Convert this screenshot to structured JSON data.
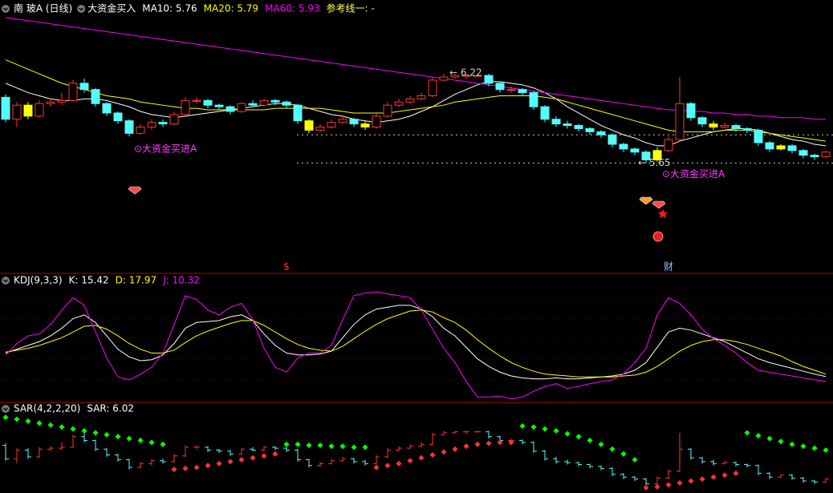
{
  "chart_data": [
    {
      "type": "candlestick",
      "title": "南 玻A (日线)",
      "subtitle": "大资金买入",
      "note": "参考线一: -",
      "note_color": "#ffff54",
      "open": [
        6.07,
        5.93,
        6.02,
        5.95,
        6.03,
        6.04,
        6.05,
        6.16,
        6.12,
        6.03,
        5.97,
        5.92,
        5.84,
        5.88,
        5.91,
        5.9,
        5.96,
        6.05,
        6.05,
        6.02,
        6.01,
        5.98,
        6.03,
        6.02,
        6.05,
        6.04,
        6.02,
        5.92,
        5.86,
        5.88,
        5.91,
        5.93,
        5.9,
        5.88,
        5.95,
        6.02,
        6.04,
        6.06,
        6.08,
        6.18,
        6.2,
        6.21,
        6.21,
        6.21,
        6.16,
        6.12,
        6.12,
        6.1,
        6.01,
        5.93,
        5.9,
        5.89,
        5.87,
        5.85,
        5.83,
        5.77,
        5.74,
        5.72,
        5.67,
        5.73,
        5.8,
        6.03,
        5.94,
        5.9,
        5.88,
        5.89,
        5.87,
        5.86,
        5.78,
        5.74,
        5.76,
        5.73,
        5.7,
        5.69
      ],
      "high": [
        6.09,
        6.04,
        6.04,
        6.05,
        6.06,
        6.1,
        6.18,
        6.19,
        6.13,
        6.04,
        5.98,
        5.93,
        5.9,
        5.93,
        5.93,
        5.98,
        6.07,
        6.07,
        6.06,
        6.03,
        6.02,
        6.04,
        6.05,
        6.06,
        6.06,
        6.05,
        6.03,
        5.93,
        5.9,
        5.93,
        5.95,
        5.94,
        5.92,
        5.97,
        6.04,
        6.06,
        6.08,
        6.1,
        6.2,
        6.22,
        6.22,
        6.22,
        6.22,
        6.22,
        6.17,
        6.14,
        6.13,
        6.11,
        6.02,
        5.95,
        5.92,
        5.9,
        5.88,
        5.86,
        5.84,
        5.78,
        5.75,
        5.73,
        5.75,
        5.82,
        6.2,
        6.04,
        5.95,
        5.92,
        5.91,
        5.9,
        5.88,
        5.87,
        5.79,
        5.77,
        5.77,
        5.74,
        5.71,
        5.73
      ],
      "low": [
        5.91,
        5.88,
        5.93,
        5.94,
        6.01,
        6.02,
        6.04,
        6.1,
        6.01,
        5.95,
        5.9,
        5.82,
        5.83,
        5.86,
        5.88,
        5.89,
        5.95,
        6.03,
        6.0,
        5.99,
        5.96,
        5.97,
        6.01,
        6.01,
        6.02,
        6.0,
        5.9,
        5.84,
        5.85,
        5.87,
        5.9,
        5.88,
        5.86,
        5.87,
        5.94,
        6.01,
        6.03,
        6.05,
        6.07,
        6.17,
        6.19,
        6.19,
        6.2,
        6.14,
        6.1,
        6.1,
        6.08,
        5.99,
        5.91,
        5.88,
        5.87,
        5.85,
        5.83,
        5.81,
        5.75,
        5.72,
        5.7,
        5.65,
        5.66,
        5.72,
        5.79,
        5.92,
        5.88,
        5.86,
        5.87,
        5.85,
        5.84,
        5.76,
        5.72,
        5.73,
        5.71,
        5.68,
        5.67,
        5.68
      ],
      "close": [
        5.93,
        6.02,
        5.95,
        6.03,
        6.04,
        6.05,
        6.16,
        6.12,
        6.03,
        5.97,
        5.92,
        5.84,
        5.88,
        5.91,
        5.9,
        5.96,
        6.05,
        6.05,
        6.02,
        6.01,
        5.98,
        6.03,
        6.02,
        6.05,
        6.04,
        6.02,
        5.92,
        5.86,
        5.88,
        5.91,
        5.93,
        5.9,
        5.88,
        5.95,
        6.02,
        6.04,
        6.06,
        6.08,
        6.18,
        6.2,
        6.21,
        6.21,
        6.21,
        6.16,
        6.12,
        6.12,
        6.1,
        6.01,
        5.93,
        5.9,
        5.89,
        5.87,
        5.85,
        5.83,
        5.77,
        5.74,
        5.72,
        5.67,
        5.73,
        5.8,
        6.03,
        5.94,
        5.9,
        5.88,
        5.89,
        5.87,
        5.86,
        5.78,
        5.74,
        5.76,
        5.73,
        5.7,
        5.69,
        5.72
      ],
      "up_color": "#ff3232",
      "down_color": "#54fcfc",
      "highlight_color": "#ffff00",
      "highlight": [
        2,
        27,
        32,
        58,
        63,
        69
      ],
      "ylim": [
        4.95,
        6.6
      ],
      "series": [
        {
          "name": "MA10: 5.76",
          "color": "#ffffff",
          "values": [
            6.16,
            6.13,
            6.1,
            6.08,
            6.06,
            6.05,
            6.05,
            6.06,
            6.06,
            6.05,
            6.03,
            6.01,
            5.98,
            5.96,
            5.95,
            5.94,
            5.95,
            5.96,
            5.97,
            5.98,
            5.99,
            6.0,
            6.01,
            6.02,
            6.03,
            6.03,
            6.02,
            6.0,
            5.98,
            5.96,
            5.95,
            5.93,
            5.92,
            5.91,
            5.92,
            5.93,
            5.95,
            5.98,
            6.01,
            6.05,
            6.09,
            6.12,
            6.15,
            6.17,
            6.17,
            6.16,
            6.15,
            6.13,
            6.1,
            6.06,
            6.01,
            5.97,
            5.93,
            5.89,
            5.86,
            5.83,
            5.81,
            5.78,
            5.76,
            5.76,
            5.79,
            5.81,
            5.83,
            5.85,
            5.86,
            5.87,
            5.87,
            5.86,
            5.84,
            5.82,
            5.8,
            5.79,
            5.77,
            5.76
          ]
        },
        {
          "name": "MA20: 5.79",
          "color": "#ffff00",
          "values": [
            6.31,
            6.28,
            6.25,
            6.22,
            6.19,
            6.16,
            6.14,
            6.12,
            6.1,
            6.08,
            6.07,
            6.06,
            6.04,
            6.03,
            6.02,
            6.01,
            6.0,
            6.0,
            5.99,
            5.99,
            5.99,
            5.99,
            5.99,
            5.99,
            6.0,
            6.0,
            6.0,
            6.0,
            6.0,
            5.99,
            5.98,
            5.97,
            5.97,
            5.97,
            5.97,
            5.98,
            5.99,
            6.0,
            6.01,
            6.02,
            6.04,
            6.05,
            6.06,
            6.07,
            6.08,
            6.08,
            6.08,
            6.08,
            6.07,
            6.06,
            6.04,
            6.02,
            6.0,
            5.98,
            5.96,
            5.94,
            5.92,
            5.9,
            5.88,
            5.86,
            5.85,
            5.85,
            5.85,
            5.85,
            5.86,
            5.86,
            5.86,
            5.85,
            5.84,
            5.83,
            5.82,
            5.81,
            5.8,
            5.79
          ]
        },
        {
          "name": "MA60: 5.93",
          "color": "#ff00ff",
          "values": [
            6.58,
            6.57,
            6.56,
            6.55,
            6.54,
            6.53,
            6.52,
            6.51,
            6.5,
            6.49,
            6.48,
            6.47,
            6.46,
            6.45,
            6.44,
            6.43,
            6.42,
            6.41,
            6.4,
            6.39,
            6.38,
            6.37,
            6.36,
            6.35,
            6.34,
            6.33,
            6.32,
            6.31,
            6.3,
            6.29,
            6.28,
            6.27,
            6.26,
            6.25,
            6.24,
            6.23,
            6.22,
            6.21,
            6.2,
            6.19,
            6.18,
            6.17,
            6.16,
            6.15,
            6.14,
            6.13,
            6.12,
            6.11,
            6.1,
            6.09,
            6.08,
            6.07,
            6.06,
            6.05,
            6.04,
            6.03,
            6.02,
            6.01,
            6.0,
            5.99,
            5.99,
            5.98,
            5.98,
            5.97,
            5.97,
            5.96,
            5.96,
            5.95,
            5.95,
            5.94,
            5.94,
            5.94,
            5.93,
            5.93
          ]
        }
      ],
      "max_label": {
        "value": 6.22,
        "label": "← 6.22"
      },
      "min_label": {
        "value": 5.65,
        "label": "← 5.65"
      },
      "reference_lines": [
        5.83,
        5.65
      ],
      "signals": [
        {
          "at": 11,
          "label": "⊙大资金买进A"
        },
        {
          "at": 58,
          "label": "⊙大资金买进A"
        }
      ],
      "signal_color": "#ff3cff",
      "events": [
        {
          "at": 25,
          "label": "$",
          "color": "#ff3232"
        },
        {
          "at": 59,
          "label": "财",
          "color": "#8cc8ff"
        }
      ]
    },
    {
      "type": "line",
      "title": "KDJ(9,3,3)",
      "ylim": [
        -10,
        110
      ],
      "series": [
        {
          "name": "K: 15.42",
          "color": "#ffffff",
          "values": [
            40,
            44,
            48,
            52,
            58,
            66,
            76,
            80,
            72,
            58,
            44,
            36,
            32,
            33,
            38,
            50,
            66,
            72,
            73,
            74,
            78,
            80,
            74,
            60,
            48,
            40,
            38,
            38,
            39,
            42,
            56,
            70,
            80,
            86,
            88,
            90,
            90,
            86,
            78,
            66,
            58,
            46,
            34,
            26,
            20,
            16,
            14,
            13,
            13,
            14,
            13,
            13,
            14,
            15,
            16,
            18,
            22,
            30,
            46,
            62,
            66,
            64,
            60,
            56,
            52,
            46,
            40,
            34,
            30,
            27,
            24,
            21,
            18,
            15.42
          ]
        },
        {
          "name": "D: 17.97",
          "color": "#ffff00",
          "values": [
            41,
            43,
            45,
            48,
            52,
            56,
            62,
            68,
            69,
            65,
            58,
            50,
            44,
            40,
            40,
            43,
            51,
            58,
            63,
            67,
            71,
            74,
            74,
            69,
            62,
            55,
            49,
            45,
            43,
            42,
            47,
            55,
            63,
            70,
            76,
            80,
            84,
            85,
            83,
            77,
            72,
            64,
            54,
            45,
            37,
            30,
            25,
            21,
            18,
            17,
            16,
            15,
            15,
            15,
            15,
            16,
            17,
            20,
            26,
            34,
            42,
            48,
            52,
            54,
            54,
            52,
            49,
            45,
            41,
            37,
            31,
            26,
            22,
            17.97
          ]
        },
        {
          "name": "J: 10.32",
          "color": "#ff00ff",
          "values": [
            38,
            50,
            58,
            60,
            70,
            85,
            98,
            90,
            62,
            35,
            15,
            12,
            18,
            25,
            40,
            70,
            100,
            96,
            85,
            80,
            88,
            92,
            75,
            45,
            25,
            20,
            35,
            40,
            40,
            48,
            75,
            100,
            103,
            104,
            102,
            100,
            98,
            85,
            65,
            45,
            30,
            10,
            -6,
            -6,
            -5,
            -8,
            -6,
            0,
            5,
            8,
            3,
            5,
            8,
            10,
            12,
            18,
            30,
            45,
            80,
            98,
            92,
            80,
            65,
            55,
            48,
            40,
            30,
            22,
            20,
            18,
            16,
            14,
            12,
            10.32
          ]
        }
      ]
    },
    {
      "type": "sar",
      "title": "SAR(4,2,2,20)",
      "ylim": [
        5.6,
        6.39
      ],
      "above_color": "#00ff00",
      "below_color": "#ff3232",
      "series": [
        {
          "name": "SAR: 6.02",
          "color": "#ffffff",
          "values": [
            6.36,
            6.34,
            6.32,
            6.3,
            6.28,
            6.26,
            6.24,
            6.22,
            6.2,
            6.18,
            6.16,
            6.14,
            6.12,
            6.1,
            6.08,
            5.82,
            5.83,
            5.84,
            5.86,
            5.88,
            5.9,
            5.92,
            5.94,
            5.96,
            5.98,
            6.08,
            6.08,
            6.07,
            6.07,
            6.06,
            6.06,
            6.05,
            6.05,
            5.84,
            5.86,
            5.88,
            5.91,
            5.94,
            5.97,
            6.0,
            6.03,
            6.06,
            6.08,
            6.09,
            6.1,
            6.1,
            6.27,
            6.26,
            6.24,
            6.22,
            6.19,
            6.16,
            6.12,
            6.08,
            6.03,
            5.98,
            5.92,
            5.63,
            5.64,
            5.66,
            5.68,
            5.7,
            5.72,
            5.74,
            5.76,
            5.78,
            6.2,
            6.17,
            6.14,
            6.11,
            6.08,
            6.06,
            6.04,
            6.02
          ]
        }
      ]
    }
  ]
}
